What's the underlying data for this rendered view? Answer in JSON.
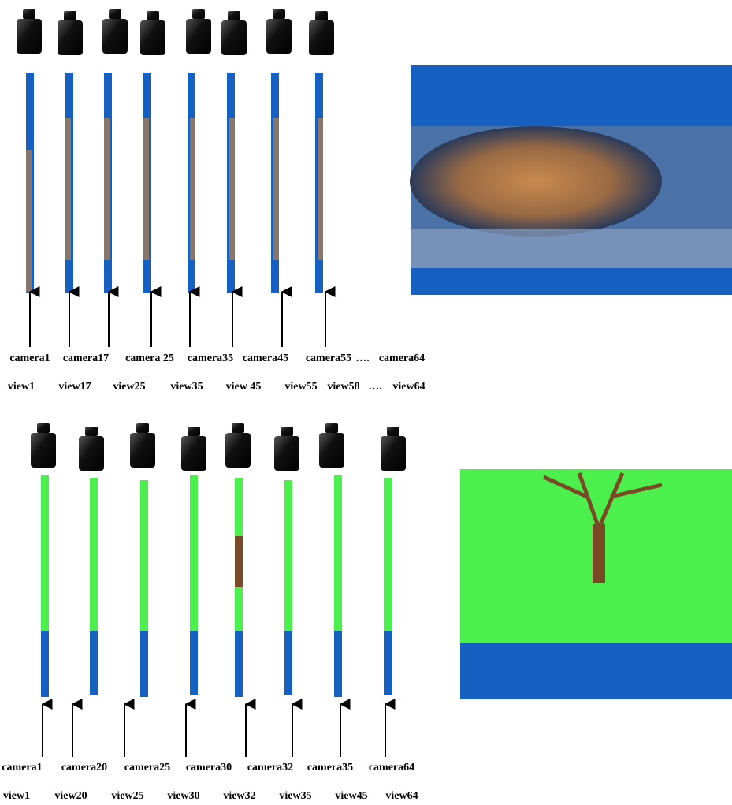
{
  "top": {
    "cameras": [
      "camera1",
      "camera17",
      "camera 25",
      "camera35",
      "camera45",
      "camera55",
      "….",
      "camera64"
    ],
    "views": [
      "view1",
      "view17",
      "view25",
      "view35",
      "view 45",
      "view55",
      "view58",
      "….",
      "view64"
    ]
  },
  "bottom": {
    "cameras": [
      "camera1",
      "camera20",
      "camera25",
      "camera30",
      "camera32",
      "camera35",
      "camera64"
    ],
    "views": [
      "view1",
      "view20",
      "view25",
      "view30",
      "view32",
      "view35",
      "view45",
      "view64"
    ]
  }
}
